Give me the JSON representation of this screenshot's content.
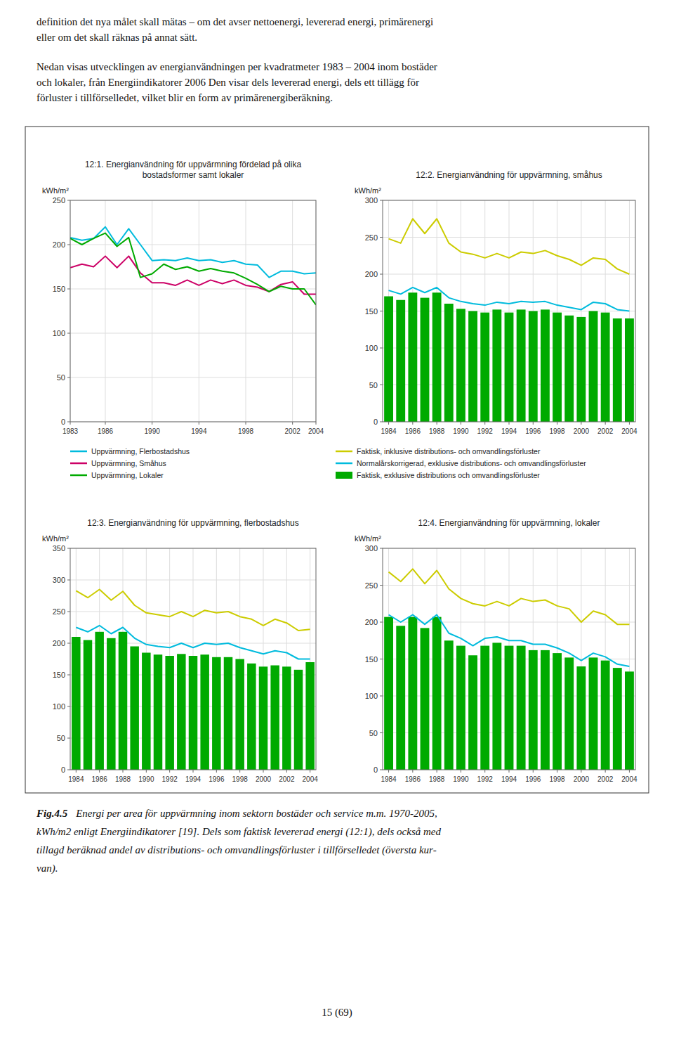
{
  "header_text": [
    "definition det nya målet skall mätas – om det avser nettoenergi, levererad energi, primärenergi",
    "eller om det skall räknas på annat sätt."
  ],
  "paragraph": [
    "Nedan visas utvecklingen av energianvändningen per kvadratmeter 1983 – 2004 inom bostäder",
    "och lokaler, från Energiindikatorer 2006 Den visar dels levererad energi, dels ett tillägg för",
    "förluster i tillförselledet, vilket blir en form av primärenergiberäkning."
  ],
  "caption_label": "Fig.4.5",
  "caption": [
    "Energi per area för uppvärmning inom sektorn bostäder och service m.m. 1970-2005,",
    "kWh/m2 enligt Energiindikatorer [19]. Dels som faktisk levererad energi (12:1), dels också med",
    "tillagd beräknad andel av distributions- och omvandlingsförluster i tillförselledet (översta kur-",
    "van)."
  ],
  "page_number": "15 (69)",
  "chart_data": [
    {
      "type": "line",
      "title": "12:1. Energianvändning för uppvärmning fördelad på olika\nbostadsformer samt lokaler",
      "y_label": "kWh/m²",
      "x": [
        1983,
        1984,
        1985,
        1986,
        1987,
        1988,
        1989,
        1990,
        1991,
        1992,
        1993,
        1994,
        1995,
        1996,
        1997,
        1998,
        1999,
        2000,
        2001,
        2002,
        2003,
        2004
      ],
      "xlim": [
        1983,
        2004
      ],
      "xticks": [
        1983,
        1986,
        1990,
        1994,
        1998,
        2002,
        2004
      ],
      "ylim": [
        0,
        250
      ],
      "yticks": [
        0,
        50,
        100,
        150,
        200,
        250
      ],
      "grid": true,
      "legend": "bottom",
      "series": [
        {
          "name": "Uppvärmning, Flerbostadshus",
          "color": "#00BBDD",
          "values": [
            208,
            205,
            207,
            220,
            200,
            218,
            200,
            182,
            183,
            182,
            185,
            182,
            183,
            180,
            182,
            178,
            177,
            163,
            170,
            170,
            167,
            168
          ]
        },
        {
          "name": "Uppvärmning, Småhus",
          "color": "#CC0066",
          "values": [
            174,
            178,
            175,
            187,
            174,
            187,
            168,
            157,
            157,
            154,
            160,
            154,
            160,
            156,
            160,
            154,
            152,
            147,
            155,
            158,
            144,
            144
          ]
        },
        {
          "name": "Uppvärmning, Lokaler",
          "color": "#00AA00",
          "values": [
            207,
            200,
            207,
            213,
            198,
            208,
            163,
            167,
            178,
            172,
            175,
            170,
            173,
            170,
            168,
            162,
            155,
            147,
            153,
            150,
            150,
            132
          ]
        }
      ]
    },
    {
      "type": "bar",
      "title": "12:2. Energianvändning för uppvärmning, småhus",
      "y_label": "kWh/m²",
      "x": [
        1984,
        1985,
        1986,
        1987,
        1988,
        1989,
        1990,
        1991,
        1992,
        1993,
        1994,
        1995,
        1996,
        1997,
        1998,
        1999,
        2000,
        2001,
        2002,
        2003,
        2004
      ],
      "xlim": [
        1983.5,
        2004.5
      ],
      "xticks": [
        1984,
        1986,
        1988,
        1990,
        1992,
        1994,
        1996,
        1998,
        2000,
        2002,
        2004
      ],
      "ylim": [
        0,
        300
      ],
      "yticks": [
        0,
        50,
        100,
        150,
        200,
        250,
        300
      ],
      "grid": true,
      "legend": "bottom",
      "series": [
        {
          "name": "Faktisk, inklusive distributions- och omvandlingsförluster",
          "type": "line",
          "color": "#CCCC00",
          "values": [
            248,
            242,
            275,
            255,
            275,
            242,
            230,
            227,
            222,
            228,
            222,
            230,
            228,
            232,
            225,
            220,
            212,
            222,
            220,
            207,
            200
          ]
        },
        {
          "name": "Normalårskorrigerad, exklusive distributions- och omvandlingsförluster",
          "type": "line",
          "color": "#00BBDD",
          "values": [
            178,
            173,
            182,
            175,
            182,
            168,
            163,
            160,
            158,
            162,
            160,
            163,
            162,
            163,
            158,
            155,
            152,
            162,
            160,
            152,
            150
          ]
        },
        {
          "name": "Faktisk, exklusive distributions och omvandlingsförluster",
          "type": "bar",
          "color": "#00AA00",
          "values": [
            170,
            165,
            175,
            168,
            175,
            160,
            153,
            150,
            148,
            152,
            148,
            152,
            150,
            152,
            148,
            144,
            142,
            150,
            148,
            140,
            140
          ]
        }
      ]
    },
    {
      "type": "bar",
      "title": "12:3. Energianvändning för uppvärmning, flerbostadshus",
      "y_label": "kWh/m²",
      "x": [
        1984,
        1985,
        1986,
        1987,
        1988,
        1989,
        1990,
        1991,
        1992,
        1993,
        1994,
        1995,
        1996,
        1997,
        1998,
        1999,
        2000,
        2001,
        2002,
        2003,
        2004
      ],
      "xlim": [
        1983.5,
        2004.5
      ],
      "xticks": [
        1984,
        1986,
        1988,
        1990,
        1992,
        1994,
        1996,
        1998,
        2000,
        2002,
        2004
      ],
      "ylim": [
        0,
        350
      ],
      "yticks": [
        0,
        50,
        100,
        150,
        200,
        250,
        300,
        350
      ],
      "grid": true,
      "series": [
        {
          "type": "line",
          "color": "#CCCC00",
          "values": [
            283,
            272,
            285,
            268,
            282,
            260,
            248,
            245,
            242,
            250,
            242,
            252,
            248,
            250,
            242,
            238,
            228,
            238,
            232,
            220,
            222
          ]
        },
        {
          "type": "line",
          "color": "#00BBDD",
          "values": [
            225,
            218,
            228,
            215,
            225,
            208,
            198,
            195,
            193,
            200,
            193,
            200,
            198,
            200,
            193,
            188,
            183,
            188,
            185,
            175,
            175
          ]
        },
        {
          "type": "bar",
          "color": "#00AA00",
          "values": [
            210,
            205,
            218,
            208,
            218,
            195,
            185,
            182,
            180,
            183,
            180,
            182,
            178,
            178,
            175,
            168,
            163,
            165,
            163,
            158,
            170
          ]
        }
      ]
    },
    {
      "type": "bar",
      "title": "12:4. Energianvändning för uppvärmning, lokaler",
      "y_label": "kWh/m²",
      "x": [
        1984,
        1985,
        1986,
        1987,
        1988,
        1989,
        1990,
        1991,
        1992,
        1993,
        1994,
        1995,
        1996,
        1997,
        1998,
        1999,
        2000,
        2001,
        2002,
        2003,
        2004
      ],
      "xlim": [
        1983.5,
        2004.5
      ],
      "xticks": [
        1984,
        1986,
        1988,
        1990,
        1992,
        1994,
        1996,
        1998,
        2000,
        2002,
        2004
      ],
      "ylim": [
        0,
        300
      ],
      "yticks": [
        0,
        50,
        100,
        150,
        200,
        250,
        300
      ],
      "grid": true,
      "series": [
        {
          "type": "line",
          "color": "#CCCC00",
          "values": [
            268,
            255,
            272,
            252,
            270,
            245,
            232,
            225,
            222,
            228,
            222,
            232,
            228,
            230,
            222,
            218,
            200,
            215,
            210,
            197,
            197
          ]
        },
        {
          "type": "line",
          "color": "#00BBDD",
          "values": [
            210,
            200,
            210,
            197,
            210,
            185,
            178,
            168,
            178,
            180,
            175,
            175,
            170,
            170,
            165,
            158,
            148,
            158,
            153,
            143,
            140
          ]
        },
        {
          "type": "bar",
          "color": "#00AA00",
          "values": [
            207,
            195,
            207,
            192,
            207,
            175,
            168,
            155,
            168,
            172,
            168,
            168,
            162,
            162,
            158,
            152,
            140,
            152,
            148,
            138,
            133
          ]
        }
      ]
    }
  ]
}
